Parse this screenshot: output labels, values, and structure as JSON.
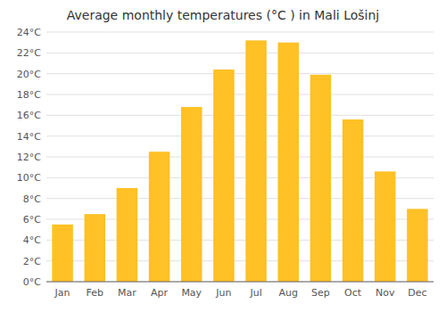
{
  "chart_data": {
    "type": "bar",
    "title": "Average monthly temperatures (°C ) in Mali Lošinj",
    "categories": [
      "Jan",
      "Feb",
      "Mar",
      "Apr",
      "May",
      "Jun",
      "Jul",
      "Aug",
      "Sep",
      "Oct",
      "Nov",
      "Dec"
    ],
    "values": [
      5.5,
      6.5,
      9.0,
      12.5,
      16.8,
      20.4,
      23.2,
      23.0,
      19.9,
      15.6,
      10.6,
      7.0
    ],
    "color": "#FFC125",
    "ylim": [
      0,
      24
    ],
    "yticks": [
      {
        "value": 0,
        "label": "0°C"
      },
      {
        "value": 2,
        "label": "2°C"
      },
      {
        "value": 4,
        "label": "4°C"
      },
      {
        "value": 6,
        "label": "6°C"
      },
      {
        "value": 8,
        "label": "8°C"
      },
      {
        "value": 10,
        "label": "10°C"
      },
      {
        "value": 12,
        "label": "12°C"
      },
      {
        "value": 14,
        "label": "14°C"
      },
      {
        "value": 16,
        "label": "16°C"
      },
      {
        "value": 18,
        "label": "18°C"
      },
      {
        "value": 20,
        "label": "20°C"
      },
      {
        "value": 22,
        "label": "22°C"
      },
      {
        "value": 24,
        "label": "24°C"
      }
    ],
    "grid": true
  }
}
